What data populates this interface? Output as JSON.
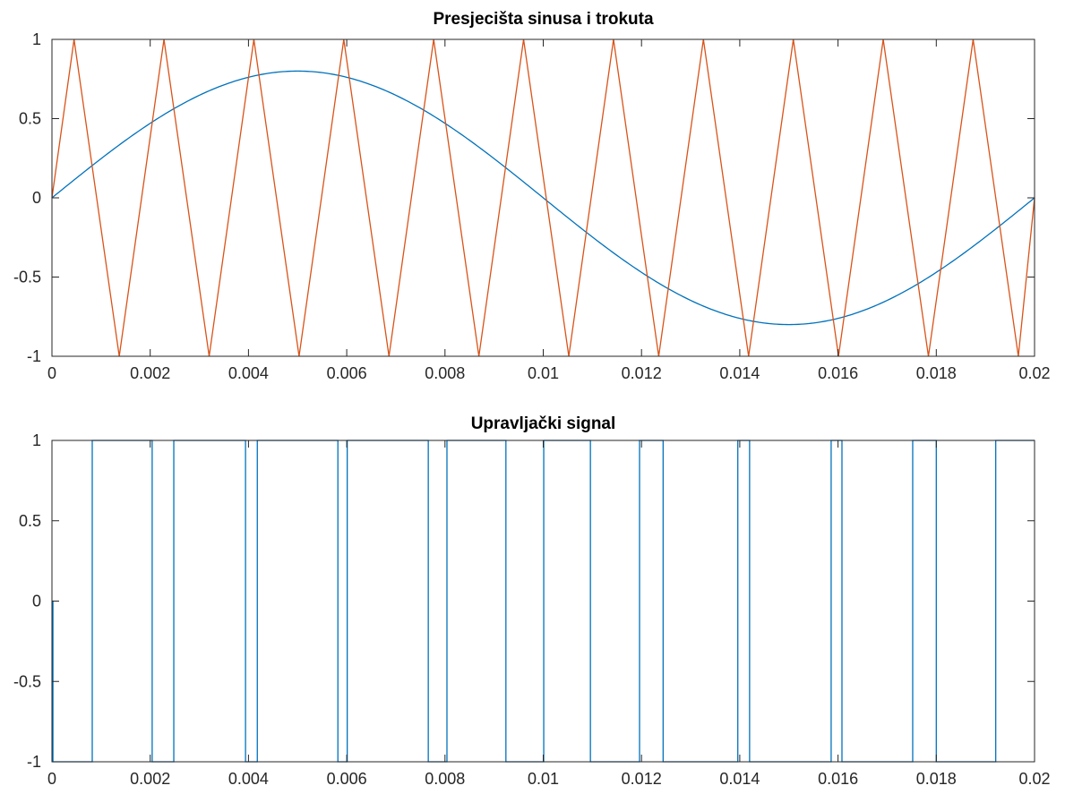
{
  "chart_data": [
    {
      "type": "line",
      "title": "Presjecišta sinusa i trokuta",
      "xlabel": "",
      "ylabel": "",
      "xlim": [
        0,
        0.02
      ],
      "ylim": [
        -1,
        1
      ],
      "x_ticks": [
        0,
        0.002,
        0.004,
        0.006,
        0.008,
        0.01,
        0.012,
        0.014,
        0.016,
        0.018,
        0.02
      ],
      "x_tick_labels": [
        "0",
        "0.002",
        "0.004",
        "0.006",
        "0.008",
        "0.01",
        "0.012",
        "0.014",
        "0.016",
        "0.018",
        "0.02"
      ],
      "y_ticks": [
        -1,
        -0.5,
        0,
        0.5,
        1
      ],
      "y_tick_labels": [
        "-1",
        "-0.5",
        "0",
        "0.5",
        "1"
      ],
      "grid": false,
      "series": [
        {
          "color": "#0072BD",
          "kind": "sine",
          "amplitude": 0.8,
          "frequency_hz": 50,
          "x": [
            0,
            0.001,
            0.002,
            0.003,
            0.004,
            0.005,
            0.006,
            0.007,
            0.008,
            0.009,
            0.01,
            0.011,
            0.012,
            0.013,
            0.014,
            0.015,
            0.016,
            0.017,
            0.018,
            0.019,
            0.02
          ],
          "values": [
            0,
            0.247,
            0.47,
            0.647,
            0.761,
            0.8,
            0.761,
            0.647,
            0.47,
            0.247,
            0,
            -0.247,
            -0.47,
            -0.647,
            -0.761,
            -0.8,
            -0.761,
            -0.647,
            -0.47,
            -0.247,
            0
          ]
        },
        {
          "color": "#D95319",
          "kind": "triangle",
          "x": [
            0,
            0.00045,
            0.00137,
            0.00228,
            0.0032,
            0.00411,
            0.00503,
            0.00594,
            0.00686,
            0.00777,
            0.00869,
            0.0096,
            0.01052,
            0.01143,
            0.01235,
            0.01326,
            0.01418,
            0.01509,
            0.01601,
            0.01692,
            0.01784,
            0.01875,
            0.01967,
            0.02
          ],
          "values": [
            0,
            1,
            -1,
            1,
            -1,
            1,
            -1,
            1,
            -1,
            1,
            -1,
            1,
            -1,
            1,
            -1,
            1,
            -1,
            1,
            -1,
            1,
            -1,
            1,
            -1,
            0
          ]
        }
      ]
    },
    {
      "type": "line",
      "title": "Upravljački signal",
      "xlabel": "",
      "ylabel": "",
      "xlim": [
        0,
        0.02
      ],
      "ylim": [
        -1,
        1
      ],
      "x_ticks": [
        0,
        0.002,
        0.004,
        0.006,
        0.008,
        0.01,
        0.012,
        0.014,
        0.016,
        0.018,
        0.02
      ],
      "x_tick_labels": [
        "0",
        "0.002",
        "0.004",
        "0.006",
        "0.008",
        "0.01",
        "0.012",
        "0.014",
        "0.016",
        "0.018",
        "0.02"
      ],
      "y_ticks": [
        -1,
        -0.5,
        0,
        0.5,
        1
      ],
      "y_tick_labels": [
        "-1",
        "-0.5",
        "0",
        "0.5",
        "1"
      ],
      "grid": false,
      "series": [
        {
          "color": "#0072BD",
          "kind": "step",
          "x": [
            0,
            2e-05,
            0.00082,
            0.00204,
            0.00248,
            0.00394,
            0.00418,
            0.00582,
            0.00601,
            0.00766,
            0.00804,
            0.00924,
            0.01001,
            0.01096,
            0.01196,
            0.01244,
            0.01396,
            0.0142,
            0.01586,
            0.01608,
            0.01752,
            0.018,
            0.01921,
            0.02
          ],
          "values": [
            0,
            -1,
            1,
            -1,
            1,
            -1,
            1,
            -1,
            1,
            -1,
            1,
            -1,
            1,
            -1,
            1,
            -1,
            1,
            -1,
            1,
            -1,
            1,
            -1,
            1,
            1
          ]
        }
      ]
    }
  ]
}
